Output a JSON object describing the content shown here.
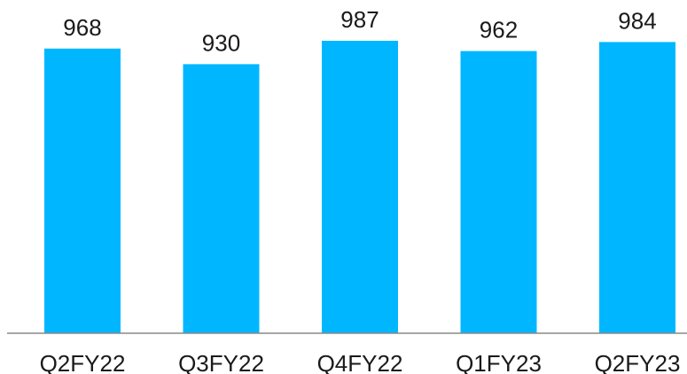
{
  "chart_data": {
    "type": "bar",
    "categories": [
      "Q2FY22",
      "Q3FY22",
      "Q4FY22",
      "Q1FY23",
      "Q2FY23"
    ],
    "values": [
      968,
      930,
      987,
      962,
      984
    ],
    "data_labels": [
      "968",
      "930",
      "987",
      "962",
      "984"
    ],
    "title": "",
    "xlabel": "",
    "ylabel": "",
    "y_axis_visible": false,
    "grid": false,
    "legend": "none",
    "bar_color": "#00B7FF",
    "axis_color": "#888888"
  }
}
